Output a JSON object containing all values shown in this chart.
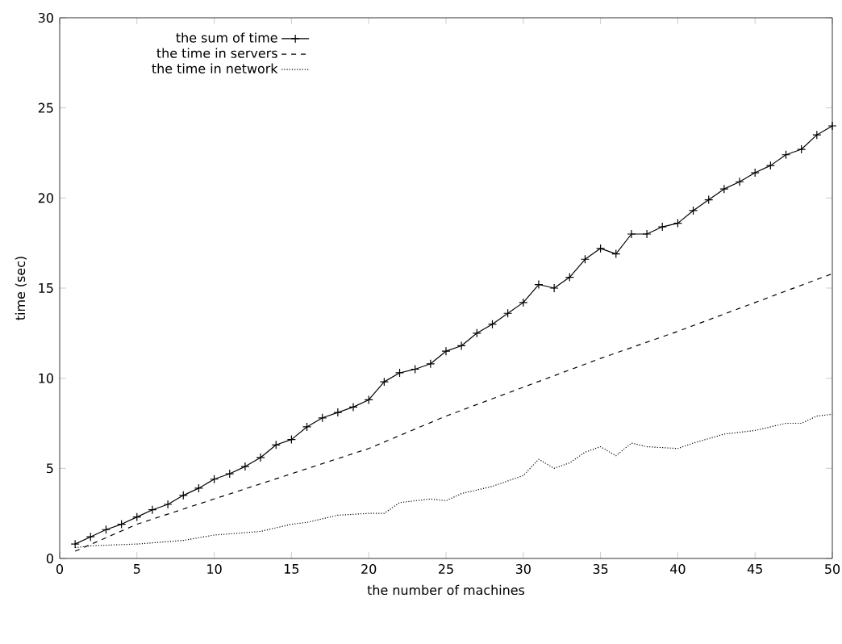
{
  "chart_data": {
    "type": "line",
    "xlabel": "the number of machines",
    "ylabel": "time (sec)",
    "xlim": [
      0,
      50
    ],
    "ylim": [
      0,
      30
    ],
    "xticks": [
      0,
      5,
      10,
      15,
      20,
      25,
      30,
      35,
      40,
      45,
      50
    ],
    "yticks": [
      0,
      5,
      10,
      15,
      20,
      25,
      30
    ],
    "legend": "top left",
    "grid": false,
    "series": [
      {
        "name": "the sum of time",
        "color": "#000000",
        "marker": "cross",
        "line_style": "solid",
        "x": [
          1,
          2,
          3,
          4,
          5,
          6,
          7,
          8,
          9,
          10,
          11,
          12,
          13,
          14,
          15,
          16,
          17,
          18,
          19,
          20,
          21,
          22,
          23,
          24,
          25,
          26,
          27,
          28,
          29,
          30,
          31,
          32,
          33,
          34,
          35,
          36,
          37,
          38,
          39,
          40,
          41,
          42,
          43,
          44,
          45,
          46,
          47,
          48,
          49,
          50
        ],
        "values": [
          0.8,
          1.2,
          1.6,
          1.9,
          2.3,
          2.7,
          3.0,
          3.5,
          3.9,
          4.4,
          4.7,
          5.1,
          5.6,
          6.3,
          6.6,
          7.3,
          7.8,
          8.1,
          8.4,
          8.8,
          9.8,
          10.3,
          10.5,
          10.8,
          11.5,
          11.8,
          12.5,
          13.0,
          13.6,
          14.2,
          15.2,
          15.0,
          15.6,
          16.6,
          17.2,
          16.9,
          18.0,
          18.0,
          18.4,
          18.6,
          19.3,
          19.9,
          20.5,
          20.9,
          21.4,
          21.8,
          22.4,
          22.7,
          23.5,
          24.0
        ]
      },
      {
        "name": "the time in servers",
        "color": "#000000",
        "marker": "none",
        "line_style": "dashed",
        "x": [
          1,
          5,
          10,
          15,
          20,
          25,
          30,
          35,
          40,
          45,
          50
        ],
        "values": [
          0.4,
          1.9,
          3.3,
          4.7,
          6.1,
          7.9,
          9.5,
          11.1,
          12.6,
          14.2,
          15.8
        ]
      },
      {
        "name": "the time in network",
        "color": "#000000",
        "marker": "none",
        "line_style": "dotted",
        "x": [
          1,
          2,
          5,
          8,
          10,
          13,
          15,
          16,
          18,
          20,
          21,
          22,
          24,
          25,
          26,
          28,
          30,
          31,
          32,
          33,
          34,
          35,
          36,
          37,
          38,
          40,
          41,
          43,
          45,
          47,
          48,
          49,
          50
        ],
        "values": [
          0.6,
          0.7,
          0.8,
          1.0,
          1.3,
          1.5,
          1.9,
          2.0,
          2.4,
          2.5,
          2.5,
          3.1,
          3.3,
          3.2,
          3.6,
          4.0,
          4.6,
          5.5,
          5.0,
          5.3,
          5.9,
          6.2,
          5.7,
          6.4,
          6.2,
          6.1,
          6.4,
          6.9,
          7.1,
          7.5,
          7.5,
          7.9,
          8.0
        ]
      }
    ]
  }
}
